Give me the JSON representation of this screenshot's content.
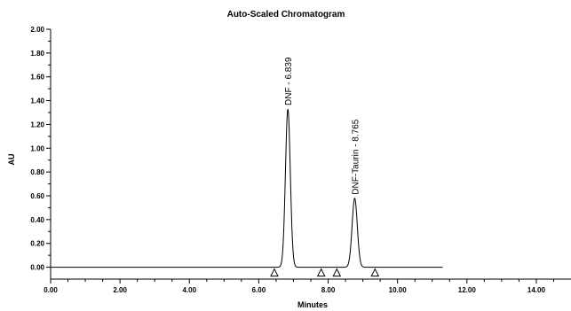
{
  "chart_data": {
    "type": "line",
    "title": "Auto-Scaled Chromatogram",
    "xlabel": "Minutes",
    "ylabel": "AU",
    "xlim": [
      0,
      15
    ],
    "ylim": [
      -0.1,
      2.0
    ],
    "x_ticks": [
      {
        "value": 0,
        "label": "0.00"
      },
      {
        "value": 2,
        "label": "2.00"
      },
      {
        "value": 4,
        "label": "4.00"
      },
      {
        "value": 6,
        "label": "6.00"
      },
      {
        "value": 8,
        "label": "8.00"
      },
      {
        "value": 10,
        "label": "10.00"
      },
      {
        "value": 12,
        "label": "12.00"
      },
      {
        "value": 14,
        "label": "14.00"
      }
    ],
    "y_ticks": [
      {
        "value": 0.0,
        "label": "0.00"
      },
      {
        "value": 0.2,
        "label": "0.20"
      },
      {
        "value": 0.4,
        "label": "0.40"
      },
      {
        "value": 0.6,
        "label": "0.60"
      },
      {
        "value": 0.8,
        "label": "0.80"
      },
      {
        "value": 1.0,
        "label": "1.00"
      },
      {
        "value": 1.2,
        "label": "1.20"
      },
      {
        "value": 1.4,
        "label": "1.40"
      },
      {
        "value": 1.6,
        "label": "1.60"
      },
      {
        "value": 1.8,
        "label": "1.80"
      },
      {
        "value": 2.0,
        "label": "2.00"
      }
    ],
    "trace_end_min": 11.3,
    "peaks": [
      {
        "label": "DNF - 6.839",
        "rt": 6.839,
        "height": 1.33,
        "sigma": 0.07
      },
      {
        "label": "DNF-Taurin - 8.765",
        "rt": 8.765,
        "height": 0.58,
        "sigma": 0.075
      }
    ],
    "integration_markers": [
      6.45,
      7.8,
      8.25,
      9.35
    ]
  }
}
